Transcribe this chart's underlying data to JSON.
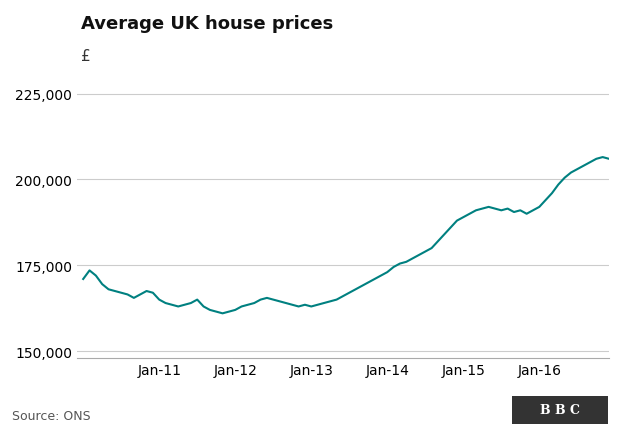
{
  "title": "Average UK house prices",
  "ylabel": "£",
  "source": "Source: ONS",
  "bbc_label": "B B C",
  "line_color": "#008080",
  "background_color": "#ffffff",
  "grid_color": "#cccccc",
  "ylim": [
    148000,
    232000
  ],
  "yticks": [
    150000,
    175000,
    200000,
    225000
  ],
  "xtick_labels": [
    "Jan-11",
    "Jan-12",
    "Jan-13",
    "Jan-14",
    "Jan-15",
    "Jan-16"
  ],
  "prices": [
    171000,
    173500,
    172000,
    169500,
    168000,
    167500,
    167000,
    166500,
    165500,
    166500,
    167500,
    167000,
    165000,
    164000,
    163500,
    163000,
    163500,
    164000,
    165000,
    163000,
    162000,
    161500,
    161000,
    161500,
    162000,
    163000,
    163500,
    164000,
    165000,
    165500,
    165000,
    164500,
    164000,
    163500,
    163000,
    163500,
    163000,
    163500,
    164000,
    164500,
    165000,
    166000,
    167000,
    168000,
    169000,
    170000,
    171000,
    172000,
    173000,
    174500,
    175500,
    176000,
    177000,
    178000,
    179000,
    180000,
    182000,
    184000,
    186000,
    188000,
    189000,
    190000,
    191000,
    191500,
    192000,
    191500,
    191000,
    191500,
    190500,
    191000,
    190000,
    191000,
    192000,
    194000,
    196000,
    198500,
    200500,
    202000,
    203000,
    204000,
    205000,
    206000,
    206500,
    206000
  ]
}
